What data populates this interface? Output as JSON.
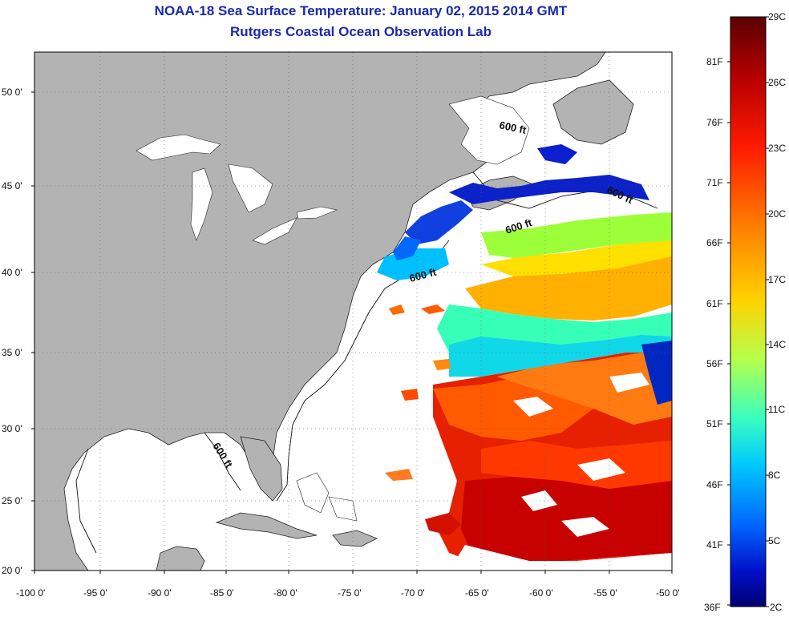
{
  "title": "NOAA-18 Sea Surface Temperature:  January 02, 2015 2014 GMT",
  "subtitle": "Rutgers Coastal Ocean Observation Lab",
  "lon_ticks": [
    "-100 0'",
    "-95 0'",
    "-90 0'",
    "-85 0'",
    "-80 0'",
    "-75 0'",
    "-70 0'",
    "-65 0'",
    "-60 0'",
    "-55 0'",
    "-50 0'"
  ],
  "lat_ticks": [
    "50 0'",
    "45 0'",
    "40 0'",
    "35 0'",
    "30 0'",
    "25 0'",
    "20 0'"
  ],
  "depth_labels": [
    "600 ft",
    "600 ft",
    "600 ft",
    "600 ft",
    "600 ft"
  ],
  "colorbar": {
    "fahrenheit": [
      "81F",
      "76F",
      "71F",
      "66F",
      "61F",
      "56F",
      "51F",
      "46F",
      "41F",
      "36F"
    ],
    "celsius": [
      "29C",
      "26C",
      "23C",
      "20C",
      "17C",
      "14C",
      "11C",
      "8C",
      "5C",
      "2C"
    ],
    "colors": [
      "#5a0000",
      "#b30000",
      "#ff1a00",
      "#ff7a00",
      "#ffd200",
      "#b6ff4a",
      "#3affc0",
      "#00c8ff",
      "#0068ff",
      "#0010c8",
      "#000070"
    ]
  },
  "colors": {
    "land": "#b3b3b3",
    "ocean": "#ffffff",
    "title": "#1a2aa8"
  }
}
